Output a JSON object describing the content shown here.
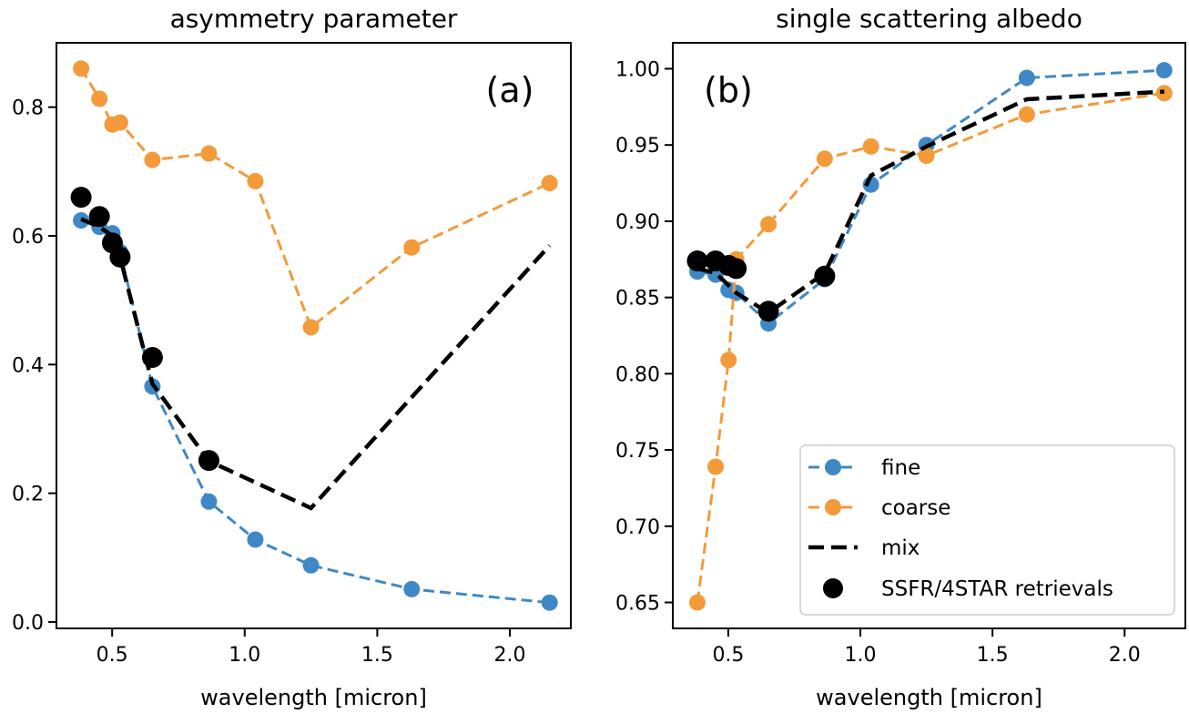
{
  "figure": {
    "colors": {
      "fine": "#3f88c5",
      "coarse": "#f39a3a",
      "mix": "#000000",
      "retrievals": "#000000"
    }
  },
  "chart_data": [
    {
      "type": "line",
      "panel_tag": "(a)",
      "title": "asymmetry parameter",
      "xlabel": "wavelength [micron]",
      "ylabel": "",
      "xlim": [
        0.29,
        2.23
      ],
      "ylim": [
        -0.01,
        0.9
      ],
      "xticks": [
        0.5,
        1.0,
        1.5,
        2.0
      ],
      "xtick_labels": [
        "0.5",
        "1.0",
        "1.5",
        "2.0"
      ],
      "yticks": [
        0.0,
        0.2,
        0.4,
        0.6,
        0.8
      ],
      "ytick_labels": [
        "0.0",
        "0.2",
        "0.4",
        "0.6",
        "0.8"
      ],
      "grid": false,
      "x": [
        0.383,
        0.452,
        0.501,
        0.53,
        0.652,
        0.865,
        1.04,
        1.25,
        1.63,
        2.15
      ],
      "series": [
        {
          "name": "fine",
          "style": "dashed-circle",
          "values": [
            0.624,
            0.614,
            0.604,
            0.575,
            0.366,
            0.187,
            0.128,
            0.088,
            0.051,
            0.03
          ]
        },
        {
          "name": "coarse",
          "style": "dashed-circle",
          "values": [
            0.86,
            0.813,
            0.773,
            0.776,
            0.718,
            0.728,
            0.685,
            0.458,
            0.582,
            0.682
          ]
        },
        {
          "name": "mix",
          "style": "dashed",
          "values": [
            0.626,
            0.614,
            0.6,
            0.567,
            0.37,
            0.25,
            null,
            0.177,
            null,
            0.585
          ]
        },
        {
          "name": "SSFR/4STAR retrievals",
          "style": "marker",
          "values": [
            0.66,
            0.63,
            0.589,
            0.567,
            0.411,
            0.251,
            null,
            null,
            null,
            null
          ]
        }
      ]
    },
    {
      "type": "line",
      "panel_tag": "(b)",
      "title": "single scattering albedo",
      "xlabel": "wavelength [micron]",
      "ylabel": "",
      "xlim": [
        0.29,
        2.23
      ],
      "ylim": [
        0.633,
        1.017
      ],
      "xticks": [
        0.5,
        1.0,
        1.5,
        2.0
      ],
      "xtick_labels": [
        "0.5",
        "1.0",
        "1.5",
        "2.0"
      ],
      "yticks": [
        0.65,
        0.7,
        0.75,
        0.8,
        0.85,
        0.9,
        0.95,
        1.0
      ],
      "ytick_labels": [
        "0.65",
        "0.70",
        "0.75",
        "0.80",
        "0.85",
        "0.90",
        "0.95",
        "1.00"
      ],
      "grid": false,
      "legend_position": "lower-right",
      "legend": [
        "fine",
        "coarse",
        "mix",
        "SSFR/4STAR retrievals"
      ],
      "x": [
        0.383,
        0.452,
        0.501,
        0.53,
        0.652,
        0.865,
        1.04,
        1.25,
        1.63,
        2.15
      ],
      "series": [
        {
          "name": "fine",
          "style": "dashed-circle",
          "values": [
            0.867,
            0.865,
            0.855,
            0.853,
            0.833,
            0.862,
            0.924,
            0.95,
            0.994,
            0.999
          ]
        },
        {
          "name": "coarse",
          "style": "dashed-circle",
          "values": [
            0.65,
            0.739,
            0.809,
            0.875,
            0.898,
            0.941,
            0.949,
            0.943,
            0.97,
            0.984
          ]
        },
        {
          "name": "mix",
          "style": "dashed",
          "values": [
            0.869,
            0.866,
            0.858,
            0.853,
            0.84,
            0.866,
            0.93,
            0.949,
            0.98,
            0.985
          ]
        },
        {
          "name": "SSFR/4STAR retrievals",
          "style": "marker",
          "values": [
            0.874,
            0.874,
            0.871,
            0.869,
            0.841,
            0.864,
            null,
            null,
            null,
            null
          ]
        }
      ]
    }
  ]
}
